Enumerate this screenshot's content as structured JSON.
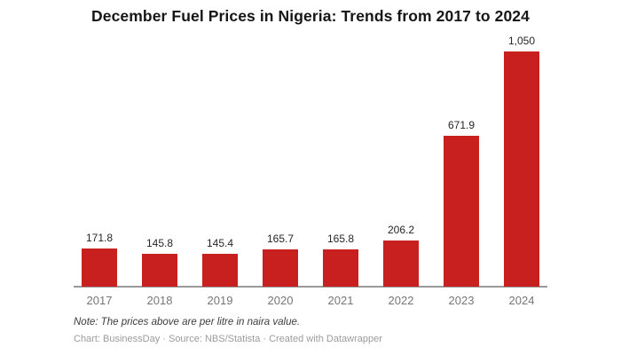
{
  "chart_data": {
    "type": "bar",
    "title": "December Fuel Prices in Nigeria: Trends from 2017 to 2024",
    "categories": [
      "2017",
      "2018",
      "2019",
      "2020",
      "2021",
      "2022",
      "2023",
      "2024"
    ],
    "values": [
      171.8,
      145.8,
      145.4,
      165.7,
      165.8,
      206.2,
      671.9,
      1050
    ],
    "value_labels": [
      "171.8",
      "145.8",
      "145.4",
      "165.7",
      "165.8",
      "206.2",
      "671.9",
      "1,050"
    ],
    "xlabel": "",
    "ylabel": "",
    "ylim": [
      0,
      1050
    ],
    "bar_color": "#c8201e",
    "axis_color": "#999999",
    "grid": false,
    "legend": false
  },
  "footer": {
    "note": "Note: The prices above are per litre in naira value.",
    "attribution": "Chart: BusinessDay · Source: NBS/Statista · Created with Datawrapper"
  },
  "colors": {
    "title": "#161616",
    "value_label": "#262626",
    "tick_label": "#767676",
    "note": "#3d3d3d",
    "attribution": "#9c9c9c"
  }
}
